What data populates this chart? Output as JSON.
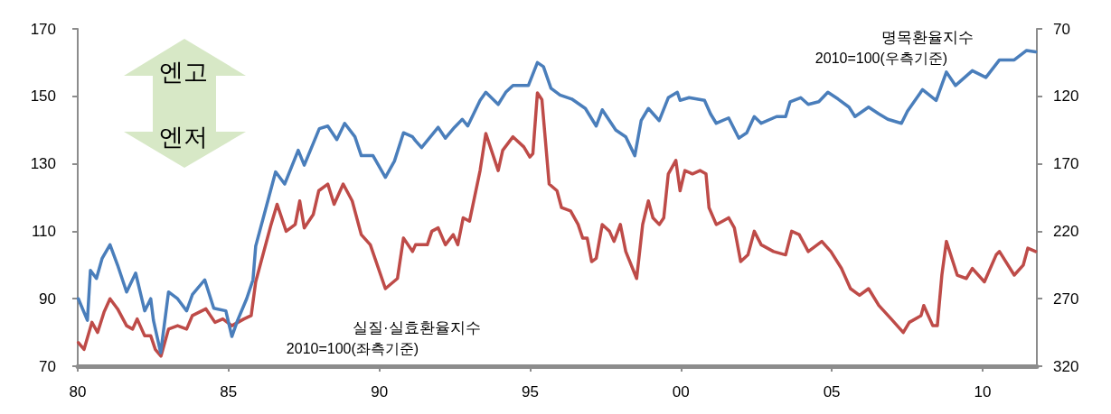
{
  "chart_data": {
    "type": "line",
    "xlim": [
      1980,
      2011.8
    ],
    "xticks": [
      {
        "value": 1980,
        "label": "80"
      },
      {
        "value": 1985,
        "label": "85"
      },
      {
        "value": 1990,
        "label": "90"
      },
      {
        "value": 1995,
        "label": "95"
      },
      {
        "value": 2000,
        "label": "00"
      },
      {
        "value": 2005,
        "label": "05"
      },
      {
        "value": 2010,
        "label": "10"
      }
    ],
    "ylim": [
      70,
      170
    ],
    "yticks": [
      70,
      90,
      110,
      130,
      150,
      170
    ],
    "y2lim": [
      320,
      70
    ],
    "y2ticks": [
      70,
      120,
      170,
      220,
      270,
      320
    ],
    "grid": false,
    "legend": false,
    "marker": "none",
    "line_style": "solid",
    "annotations": [
      "2010=100(좌측기준)",
      "2010=100(우측기준)",
      "엔고",
      "엔저"
    ],
    "series": [
      {
        "name": "실질·실효환율지수",
        "color": "#be4b48",
        "x": [
          1980.02,
          1980.21,
          1980.47,
          1980.66,
          1980.87,
          1981.07,
          1981.32,
          1981.62,
          1981.82,
          1981.97,
          1982.22,
          1982.42,
          1982.57,
          1982.76,
          1983.01,
          1983.31,
          1983.61,
          1983.8,
          1984.25,
          1984.55,
          1984.81,
          1985.11,
          1985.51,
          1985.75,
          1985.9,
          1986.11,
          1986.41,
          1986.61,
          1986.91,
          1987.21,
          1987.36,
          1987.51,
          1987.81,
          1987.99,
          1988.29,
          1988.5,
          1988.8,
          1989.1,
          1989.4,
          1989.7,
          1990.2,
          1990.6,
          1990.8,
          1991.1,
          1991.2,
          1991.59,
          1991.74,
          1991.95,
          1992.19,
          1992.45,
          1992.6,
          1992.78,
          1992.99,
          1993.34,
          1993.53,
          1993.94,
          1994.09,
          1994.43,
          1994.79,
          1994.99,
          1995.09,
          1995.24,
          1995.39,
          1995.63,
          1995.89,
          1996.04,
          1996.34,
          1996.59,
          1996.74,
          1996.89,
          1997.04,
          1997.19,
          1997.39,
          1997.63,
          1997.78,
          1997.99,
          1998.17,
          1998.53,
          1998.73,
          1998.92,
          1999.07,
          1999.28,
          1999.43,
          1999.58,
          1999.83,
          1999.97,
          2000.13,
          2000.38,
          2000.63,
          2000.83,
          2000.93,
          2001.17,
          2001.38,
          2001.58,
          2001.77,
          2001.98,
          2002.22,
          2002.43,
          2002.66,
          2003.07,
          2003.47,
          2003.67,
          2003.92,
          2004.22,
          2004.67,
          2004.97,
          2005.32,
          2005.62,
          2005.92,
          2006.22,
          2006.56,
          2006.97,
          2007.37,
          2007.57,
          2007.96,
          2008.05,
          2008.35,
          2008.5,
          2008.65,
          2008.8,
          2009.16,
          2009.46,
          2009.66,
          2010.06,
          2010.45,
          2010.56,
          2011.05,
          2011.35,
          2011.5,
          2011.76
        ],
        "values": [
          77,
          75,
          83,
          80,
          86,
          90,
          87,
          82,
          81,
          84,
          79,
          79,
          75,
          73,
          81,
          82,
          81,
          85,
          87,
          83,
          84,
          82,
          84,
          85,
          95,
          102,
          112,
          118,
          110,
          112,
          119,
          111,
          115,
          122,
          124,
          118,
          124,
          119,
          109,
          106,
          93,
          96,
          108,
          104,
          106,
          106,
          110,
          111,
          106,
          109,
          106,
          114,
          113,
          128,
          139,
          128,
          134,
          138,
          135,
          132,
          133,
          151,
          149,
          124,
          122,
          117,
          116,
          112,
          108,
          108,
          101,
          102,
          112,
          110,
          107,
          112,
          104,
          96,
          112,
          119,
          114,
          112,
          114,
          127,
          131,
          122,
          128,
          127,
          128,
          127,
          117,
          112,
          113,
          114,
          111,
          101,
          103,
          110,
          106,
          104,
          103,
          110,
          109,
          104,
          107,
          104,
          99,
          93,
          91,
          93,
          88,
          84,
          80,
          83,
          85,
          88,
          82,
          82,
          97,
          107,
          97,
          96,
          99,
          95,
          103,
          104,
          97,
          100,
          105,
          104
        ]
      },
      {
        "name": "명목환율지수",
        "color": "#4a7ebb",
        "axis": "y2",
        "x": [
          1980.02,
          1980.32,
          1980.42,
          1980.62,
          1980.81,
          1981.07,
          1981.32,
          1981.62,
          1981.92,
          1982.22,
          1982.42,
          1982.51,
          1982.75,
          1983.01,
          1983.31,
          1983.61,
          1983.8,
          1984.21,
          1984.51,
          1984.91,
          1985.11,
          1985.3,
          1985.6,
          1985.81,
          1985.9,
          1986.2,
          1986.56,
          1986.86,
          1987.31,
          1987.51,
          1988.01,
          1988.29,
          1988.59,
          1988.85,
          1989.19,
          1989.4,
          1989.79,
          1990.2,
          1990.5,
          1990.8,
          1991.1,
          1991.2,
          1991.4,
          1991.95,
          1992.19,
          1992.49,
          1992.75,
          1992.93,
          1993.34,
          1993.53,
          1993.94,
          1994.19,
          1994.43,
          1994.94,
          1995.24,
          1995.44,
          1995.69,
          1995.99,
          1996.38,
          1996.83,
          1997.19,
          1997.39,
          1997.84,
          1998.17,
          1998.47,
          1998.68,
          1998.92,
          1999.28,
          1999.58,
          1999.88,
          1999.97,
          2000.27,
          2000.78,
          2000.98,
          2001.17,
          2001.58,
          2001.92,
          2002.18,
          2002.43,
          2002.66,
          2003.17,
          2003.47,
          2003.62,
          2003.97,
          2004.22,
          2004.57,
          2004.87,
          2005.21,
          2005.57,
          2005.77,
          2006.22,
          2006.56,
          2006.86,
          2007.31,
          2007.51,
          2008.01,
          2008.46,
          2008.8,
          2009.1,
          2009.66,
          2010.11,
          2010.56,
          2011.05,
          2011.46,
          2011.76
        ],
        "values": [
          270,
          286,
          249,
          255,
          240,
          230,
          245,
          265,
          251,
          279,
          270,
          286,
          310,
          265,
          270,
          279,
          267,
          256,
          277,
          279,
          298,
          286,
          270,
          256,
          231,
          206,
          176,
          185,
          160,
          171,
          144,
          142,
          152,
          140,
          150,
          164,
          164,
          180,
          168,
          147,
          150,
          153,
          158,
          143,
          151,
          143,
          137,
          142,
          123,
          117,
          126,
          117,
          112,
          112,
          95,
          98,
          114,
          119,
          122,
          129,
          142,
          130,
          145,
          150,
          164,
          138,
          129,
          138,
          121,
          117,
          123,
          121,
          123,
          133,
          140,
          136,
          151,
          147,
          135,
          140,
          135,
          135,
          124,
          121,
          126,
          124,
          117,
          122,
          128,
          135,
          128,
          133,
          137,
          140,
          131,
          115,
          123,
          102,
          112,
          101,
          106,
          93,
          93,
          86,
          87
        ]
      }
    ]
  }
}
